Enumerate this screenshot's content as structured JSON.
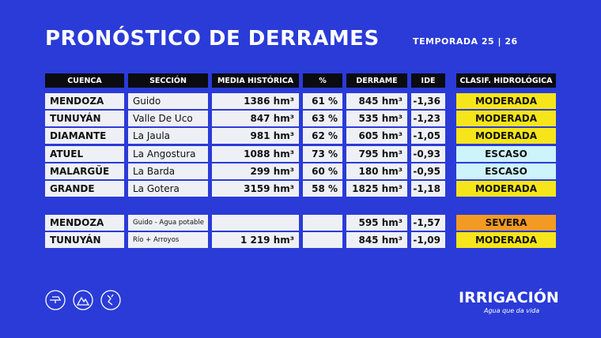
{
  "header": {
    "title": "PRONÓSTICO DE DERRAMES",
    "subtitle": "TEMPORADA 25 | 26"
  },
  "table": {
    "columns": [
      "CUENCA",
      "SECCIÓN",
      "MEDIA HISTÓRICA",
      "%",
      "DERRAME",
      "IDE",
      "CLASIF. HIDROLÓGICA"
    ],
    "rows": [
      {
        "cuenca": "MENDOZA",
        "seccion": "Guido",
        "media": "1386 hm³",
        "pct": "61 %",
        "derrame": "845 hm³",
        "ide": "-1,36",
        "clasif": "MODERADA",
        "clasif_color": "#f6e51a"
      },
      {
        "cuenca": "TUNUYÁN",
        "seccion": "Valle De Uco",
        "media": "847 hm³",
        "pct": "63 %",
        "derrame": "535 hm³",
        "ide": "-1,23",
        "clasif": "MODERADA",
        "clasif_color": "#f6e51a"
      },
      {
        "cuenca": "DIAMANTE",
        "seccion": "La Jaula",
        "media": "981 hm³",
        "pct": "62 %",
        "derrame": "605 hm³",
        "ide": "-1,05",
        "clasif": "MODERADA",
        "clasif_color": "#f6e51a"
      },
      {
        "cuenca": "ATUEL",
        "seccion": "La Angostura",
        "media": "1088 hm³",
        "pct": "73 %",
        "derrame": "795 hm³",
        "ide": "-0,93",
        "clasif": "ESCASO",
        "clasif_color": "#cdf3fb"
      },
      {
        "cuenca": "MALARGÜE",
        "seccion": "La Barda",
        "media": "299 hm³",
        "pct": "60 %",
        "derrame": "180 hm³",
        "ide": "-0,95",
        "clasif": "ESCASO",
        "clasif_color": "#cdf3fb"
      },
      {
        "cuenca": "GRANDE",
        "seccion": "La Gotera",
        "media": "3159 hm³",
        "pct": "58 %",
        "derrame": "1825 hm³",
        "ide": "-1,18",
        "clasif": "MODERADA",
        "clasif_color": "#f6e51a"
      }
    ]
  },
  "table2": {
    "rows": [
      {
        "cuenca": "MENDOZA",
        "seccion": "Guido - Agua potable",
        "derrame": "595 hm³",
        "ide": "-1,57",
        "clasif": "SEVERA",
        "clasif_color": "#f39a22"
      },
      {
        "cuenca": "TUNUYÁN",
        "seccion": "Río + Arroyos",
        "media": "1 219 hm³",
        "derrame": "845 hm³",
        "ide": "-1,09",
        "clasif": "MODERADA",
        "clasif_color": "#f6e51a"
      }
    ]
  },
  "logo": {
    "name": "IRRIGACIÓN",
    "tagline": "Agua que da vida"
  }
}
